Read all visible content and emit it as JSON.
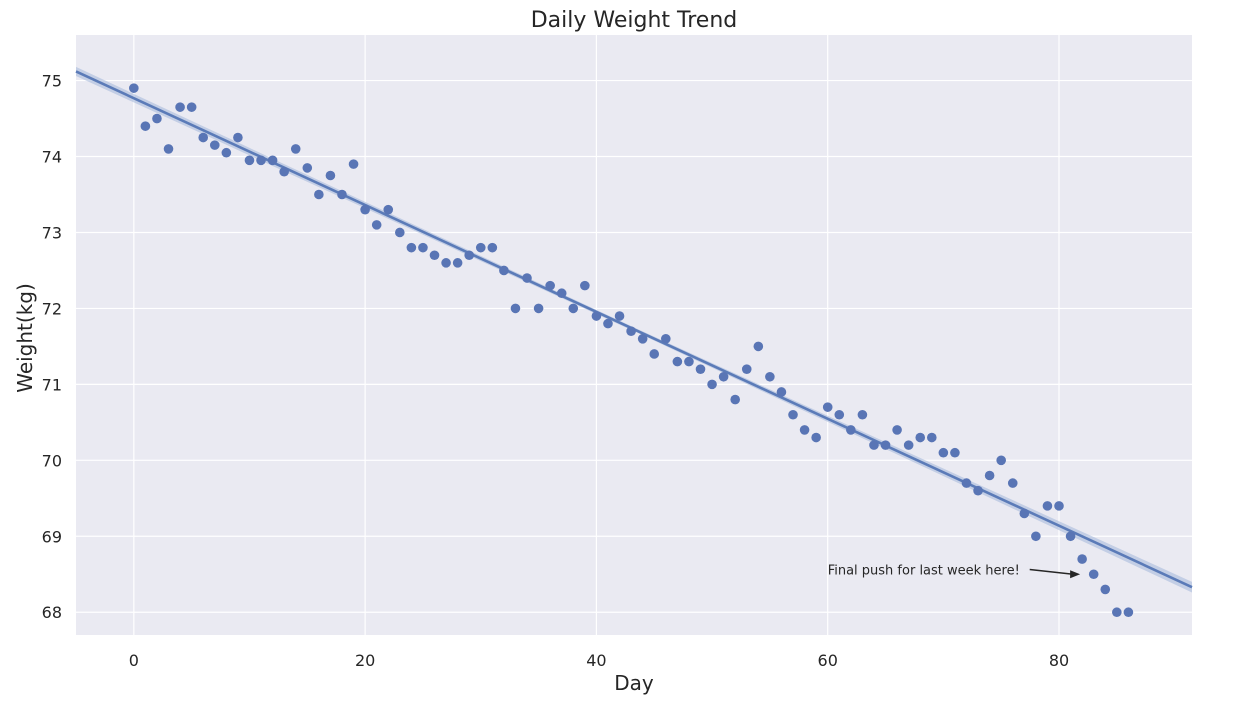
{
  "chart_data": {
    "type": "scatter",
    "title": "Daily Weight Trend",
    "xlabel": "Day",
    "ylabel": "Weight(kg)",
    "xlim": [
      -5,
      91.5
    ],
    "ylim": [
      67.7,
      75.6
    ],
    "xticks": [
      0,
      20,
      40,
      60,
      80
    ],
    "yticks": [
      68,
      69,
      70,
      71,
      72,
      73,
      74,
      75
    ],
    "grid": true,
    "colors": {
      "background": "#EAEAF2",
      "grid": "#FFFFFF",
      "points": "#5975B5",
      "trend_line": "#5B7BB8",
      "confidence_band": "#A9BADC"
    },
    "x": [
      0,
      1,
      2,
      3,
      4,
      5,
      6,
      7,
      8,
      9,
      10,
      11,
      12,
      13,
      14,
      15,
      16,
      17,
      18,
      19,
      20,
      21,
      22,
      23,
      24,
      25,
      26,
      27,
      28,
      29,
      30,
      31,
      32,
      33,
      34,
      35,
      36,
      37,
      38,
      39,
      40,
      41,
      42,
      43,
      44,
      45,
      46,
      47,
      48,
      49,
      50,
      51,
      52,
      53,
      54,
      55,
      56,
      57,
      58,
      59,
      60,
      61,
      62,
      63,
      64,
      65,
      66,
      67,
      68,
      69,
      70,
      71,
      72,
      73,
      74,
      75,
      76,
      77,
      78,
      79,
      80,
      81,
      82,
      83,
      84,
      85,
      86
    ],
    "y": [
      74.9,
      74.4,
      74.5,
      74.1,
      74.65,
      74.65,
      74.25,
      74.15,
      74.05,
      74.25,
      73.95,
      73.95,
      73.95,
      73.8,
      74.1,
      73.85,
      73.5,
      73.75,
      73.5,
      73.9,
      73.3,
      73.1,
      73.3,
      73.0,
      72.8,
      72.8,
      72.7,
      72.6,
      72.6,
      72.7,
      72.8,
      72.8,
      72.5,
      72.0,
      72.4,
      72.0,
      72.3,
      72.2,
      72.0,
      72.3,
      71.9,
      71.8,
      71.9,
      71.7,
      71.6,
      71.4,
      71.6,
      71.3,
      71.3,
      71.2,
      71.0,
      71.1,
      70.8,
      71.2,
      71.5,
      71.1,
      70.9,
      70.6,
      70.4,
      70.3,
      70.7,
      70.6,
      70.4,
      70.6,
      70.2,
      70.2,
      70.4,
      70.2,
      70.3,
      70.3,
      70.1,
      70.1,
      69.7,
      69.6,
      69.8,
      70.0,
      69.7,
      69.3,
      69.0,
      69.4,
      69.4,
      69.0,
      68.7,
      68.5,
      68.3,
      68.0,
      68.0
    ],
    "trend": {
      "type": "linear-regression",
      "x_range": [
        -5,
        91.5
      ],
      "y_range": [
        75.12,
        68.33
      ],
      "band_halfwidth": [
        0.06,
        0.025,
        0.07
      ]
    },
    "annotation": {
      "text": "Final push for last week here!",
      "arrow_to": [
        82,
        68.5
      ],
      "text_anchor_at": [
        60,
        68.55
      ]
    }
  }
}
